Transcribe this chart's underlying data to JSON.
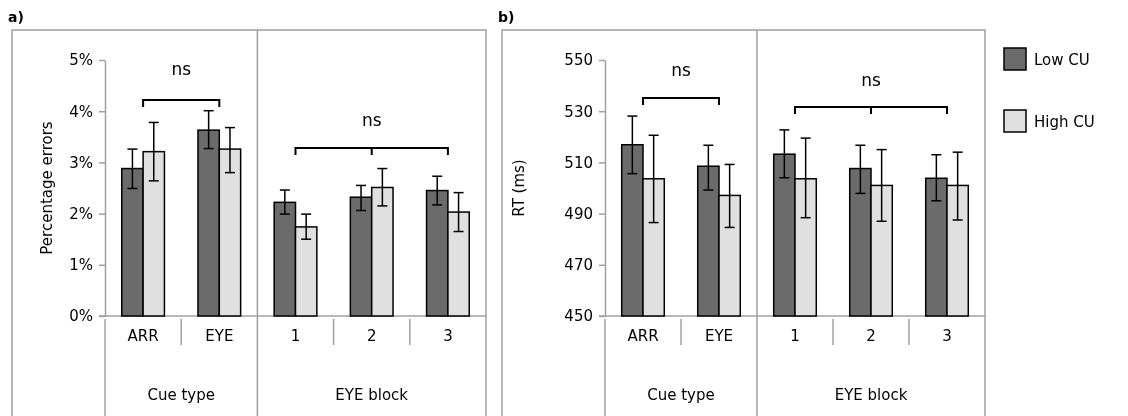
{
  "chart_data": [
    {
      "type": "bar",
      "title": "a)",
      "ylabel": "Percentage errors",
      "categories": [
        "ARR",
        "EYE",
        "1",
        "2",
        "3"
      ],
      "ylim": [
        0,
        5
      ],
      "legend": "right",
      "yticks": [
        {
          "value": 0,
          "label": "0%"
        },
        {
          "value": 1,
          "label": "1%"
        },
        {
          "value": 2,
          "label": "2%"
        },
        {
          "value": 3,
          "label": "3%"
        },
        {
          "value": 4,
          "label": "4%"
        },
        {
          "value": 5,
          "label": "5%"
        }
      ],
      "series": [
        {
          "name": "Low CU",
          "color": "#6b6b6b",
          "values": [
            2.88,
            3.63,
            2.22,
            2.32,
            2.45
          ],
          "errors": [
            [
              2.49,
              3.26
            ],
            [
              3.27,
              4.01
            ],
            [
              1.99,
              2.46
            ],
            [
              2.06,
              2.55
            ],
            [
              2.17,
              2.73
            ]
          ]
        },
        {
          "name": "High CU",
          "color": "#e0e0e0",
          "values": [
            3.21,
            3.26,
            1.74,
            2.51,
            2.03
          ],
          "errors": [
            [
              2.64,
              3.78
            ],
            [
              2.8,
              3.68
            ],
            [
              1.5,
              1.99
            ],
            [
              2.15,
              2.88
            ],
            [
              1.65,
              2.41
            ]
          ]
        }
      ],
      "annotations": [
        "ns",
        "ns",
        "Cue type",
        "EYE block"
      ]
    },
    {
      "type": "bar",
      "title": "b)",
      "ylabel": "RT (ms)",
      "categories": [
        "ARR",
        "EYE",
        "1",
        "2",
        "3"
      ],
      "ylim": [
        450,
        550
      ],
      "yticks": [
        450,
        470,
        490,
        510,
        530,
        550
      ],
      "series": [
        {
          "color": "#6b6b6b",
          "values": [
            516.9,
            508.5,
            513.2,
            507.6,
            503.8
          ],
          "errors": [
            [
              505.6,
              528.1
            ],
            [
              499.2,
              516.7
            ],
            [
              504.0,
              522.7
            ],
            [
              497.9,
              516.7
            ],
            [
              495.0,
              513.0
            ]
          ]
        },
        {
          "color": "#e0e0e0",
          "values": [
            503.6,
            497.1,
            503.6,
            501.0,
            501.0
          ],
          "errors": [
            [
              486.5,
              520.6
            ],
            [
              484.6,
              509.2
            ],
            [
              488.4,
              519.5
            ],
            [
              487.0,
              515.0
            ],
            [
              487.5,
              514.0
            ]
          ]
        }
      ],
      "annotations": [
        "ns",
        "ns",
        "Cue type",
        "EYE block"
      ]
    }
  ]
}
